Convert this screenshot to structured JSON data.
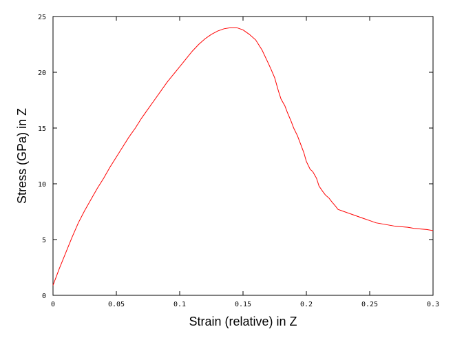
{
  "chart_data": {
    "type": "line",
    "title": "",
    "xlabel": "Strain (relative) in Z",
    "ylabel": "Stress (GPa) in Z",
    "xlim": [
      0,
      0.3
    ],
    "ylim": [
      0,
      25
    ],
    "x_ticks": [
      0,
      0.05,
      0.1,
      0.15,
      0.2,
      0.25,
      0.3
    ],
    "x_tick_labels": [
      "0",
      "0.05",
      "0.1",
      "0.15",
      "0.2",
      "0.25",
      "0.3"
    ],
    "y_ticks": [
      0,
      5,
      10,
      15,
      20,
      25
    ],
    "y_tick_labels": [
      "0",
      "5",
      "10",
      "15",
      "20",
      "25"
    ],
    "grid": false,
    "legend": "none",
    "series_color": "#ff0000",
    "series": [
      {
        "x": [
          0,
          0.005,
          0.01,
          0.015,
          0.02,
          0.025,
          0.03,
          0.035,
          0.04,
          0.045,
          0.05,
          0.055,
          0.06,
          0.065,
          0.07,
          0.075,
          0.08,
          0.085,
          0.09,
          0.095,
          0.1,
          0.105,
          0.11,
          0.115,
          0.12,
          0.125,
          0.13,
          0.135,
          0.14,
          0.145,
          0.15,
          0.155,
          0.16,
          0.165,
          0.17,
          0.172,
          0.175,
          0.178,
          0.18,
          0.183,
          0.185,
          0.188,
          0.19,
          0.193,
          0.195,
          0.198,
          0.2,
          0.203,
          0.205,
          0.208,
          0.21,
          0.213,
          0.215,
          0.218,
          0.22,
          0.223,
          0.225,
          0.23,
          0.235,
          0.24,
          0.245,
          0.25,
          0.255,
          0.26,
          0.265,
          0.27,
          0.275,
          0.28,
          0.285,
          0.29,
          0.295,
          0.3
        ],
        "y": [
          0.9,
          2.4,
          3.8,
          5.2,
          6.5,
          7.6,
          8.6,
          9.6,
          10.5,
          11.5,
          12.4,
          13.3,
          14.2,
          15.0,
          15.9,
          16.7,
          17.5,
          18.3,
          19.1,
          19.8,
          20.5,
          21.2,
          21.9,
          22.5,
          23.0,
          23.4,
          23.7,
          23.9,
          24.0,
          24.0,
          23.8,
          23.4,
          22.9,
          22.0,
          20.8,
          20.3,
          19.5,
          18.3,
          17.6,
          17.0,
          16.4,
          15.6,
          15.0,
          14.3,
          13.7,
          12.8,
          12.0,
          11.3,
          11.1,
          10.5,
          9.8,
          9.3,
          9.0,
          8.7,
          8.4,
          8.0,
          7.7,
          7.5,
          7.3,
          7.1,
          6.9,
          6.7,
          6.5,
          6.4,
          6.3,
          6.2,
          6.15,
          6.1,
          6.0,
          5.95,
          5.9,
          5.8
        ]
      }
    ]
  }
}
